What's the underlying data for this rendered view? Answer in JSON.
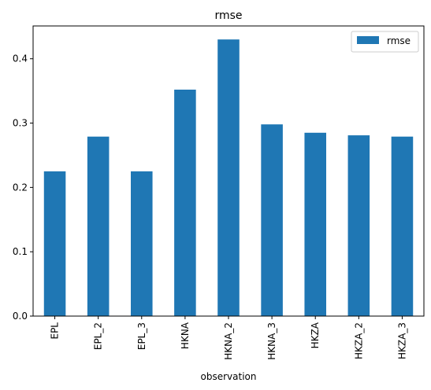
{
  "chart_data": {
    "type": "bar",
    "title": "rmse",
    "xlabel": "observation",
    "ylabel": "",
    "categories": [
      "EPL",
      "EPL_2",
      "EPL_3",
      "HKNA",
      "HKNA_2",
      "HKNA_3",
      "HKZA",
      "HKZA_2",
      "HKZA_3"
    ],
    "series": [
      {
        "name": "rmse",
        "color": "#1f77b4",
        "values": [
          0.225,
          0.279,
          0.225,
          0.352,
          0.43,
          0.298,
          0.285,
          0.281,
          0.279
        ]
      }
    ],
    "ylim": [
      0,
      0.451
    ],
    "yticks": [
      "0.0",
      "0.1",
      "0.2",
      "0.3",
      "0.4"
    ],
    "grid": false,
    "legend": {
      "placement": "top-right",
      "entries": [
        "rmse"
      ]
    }
  }
}
